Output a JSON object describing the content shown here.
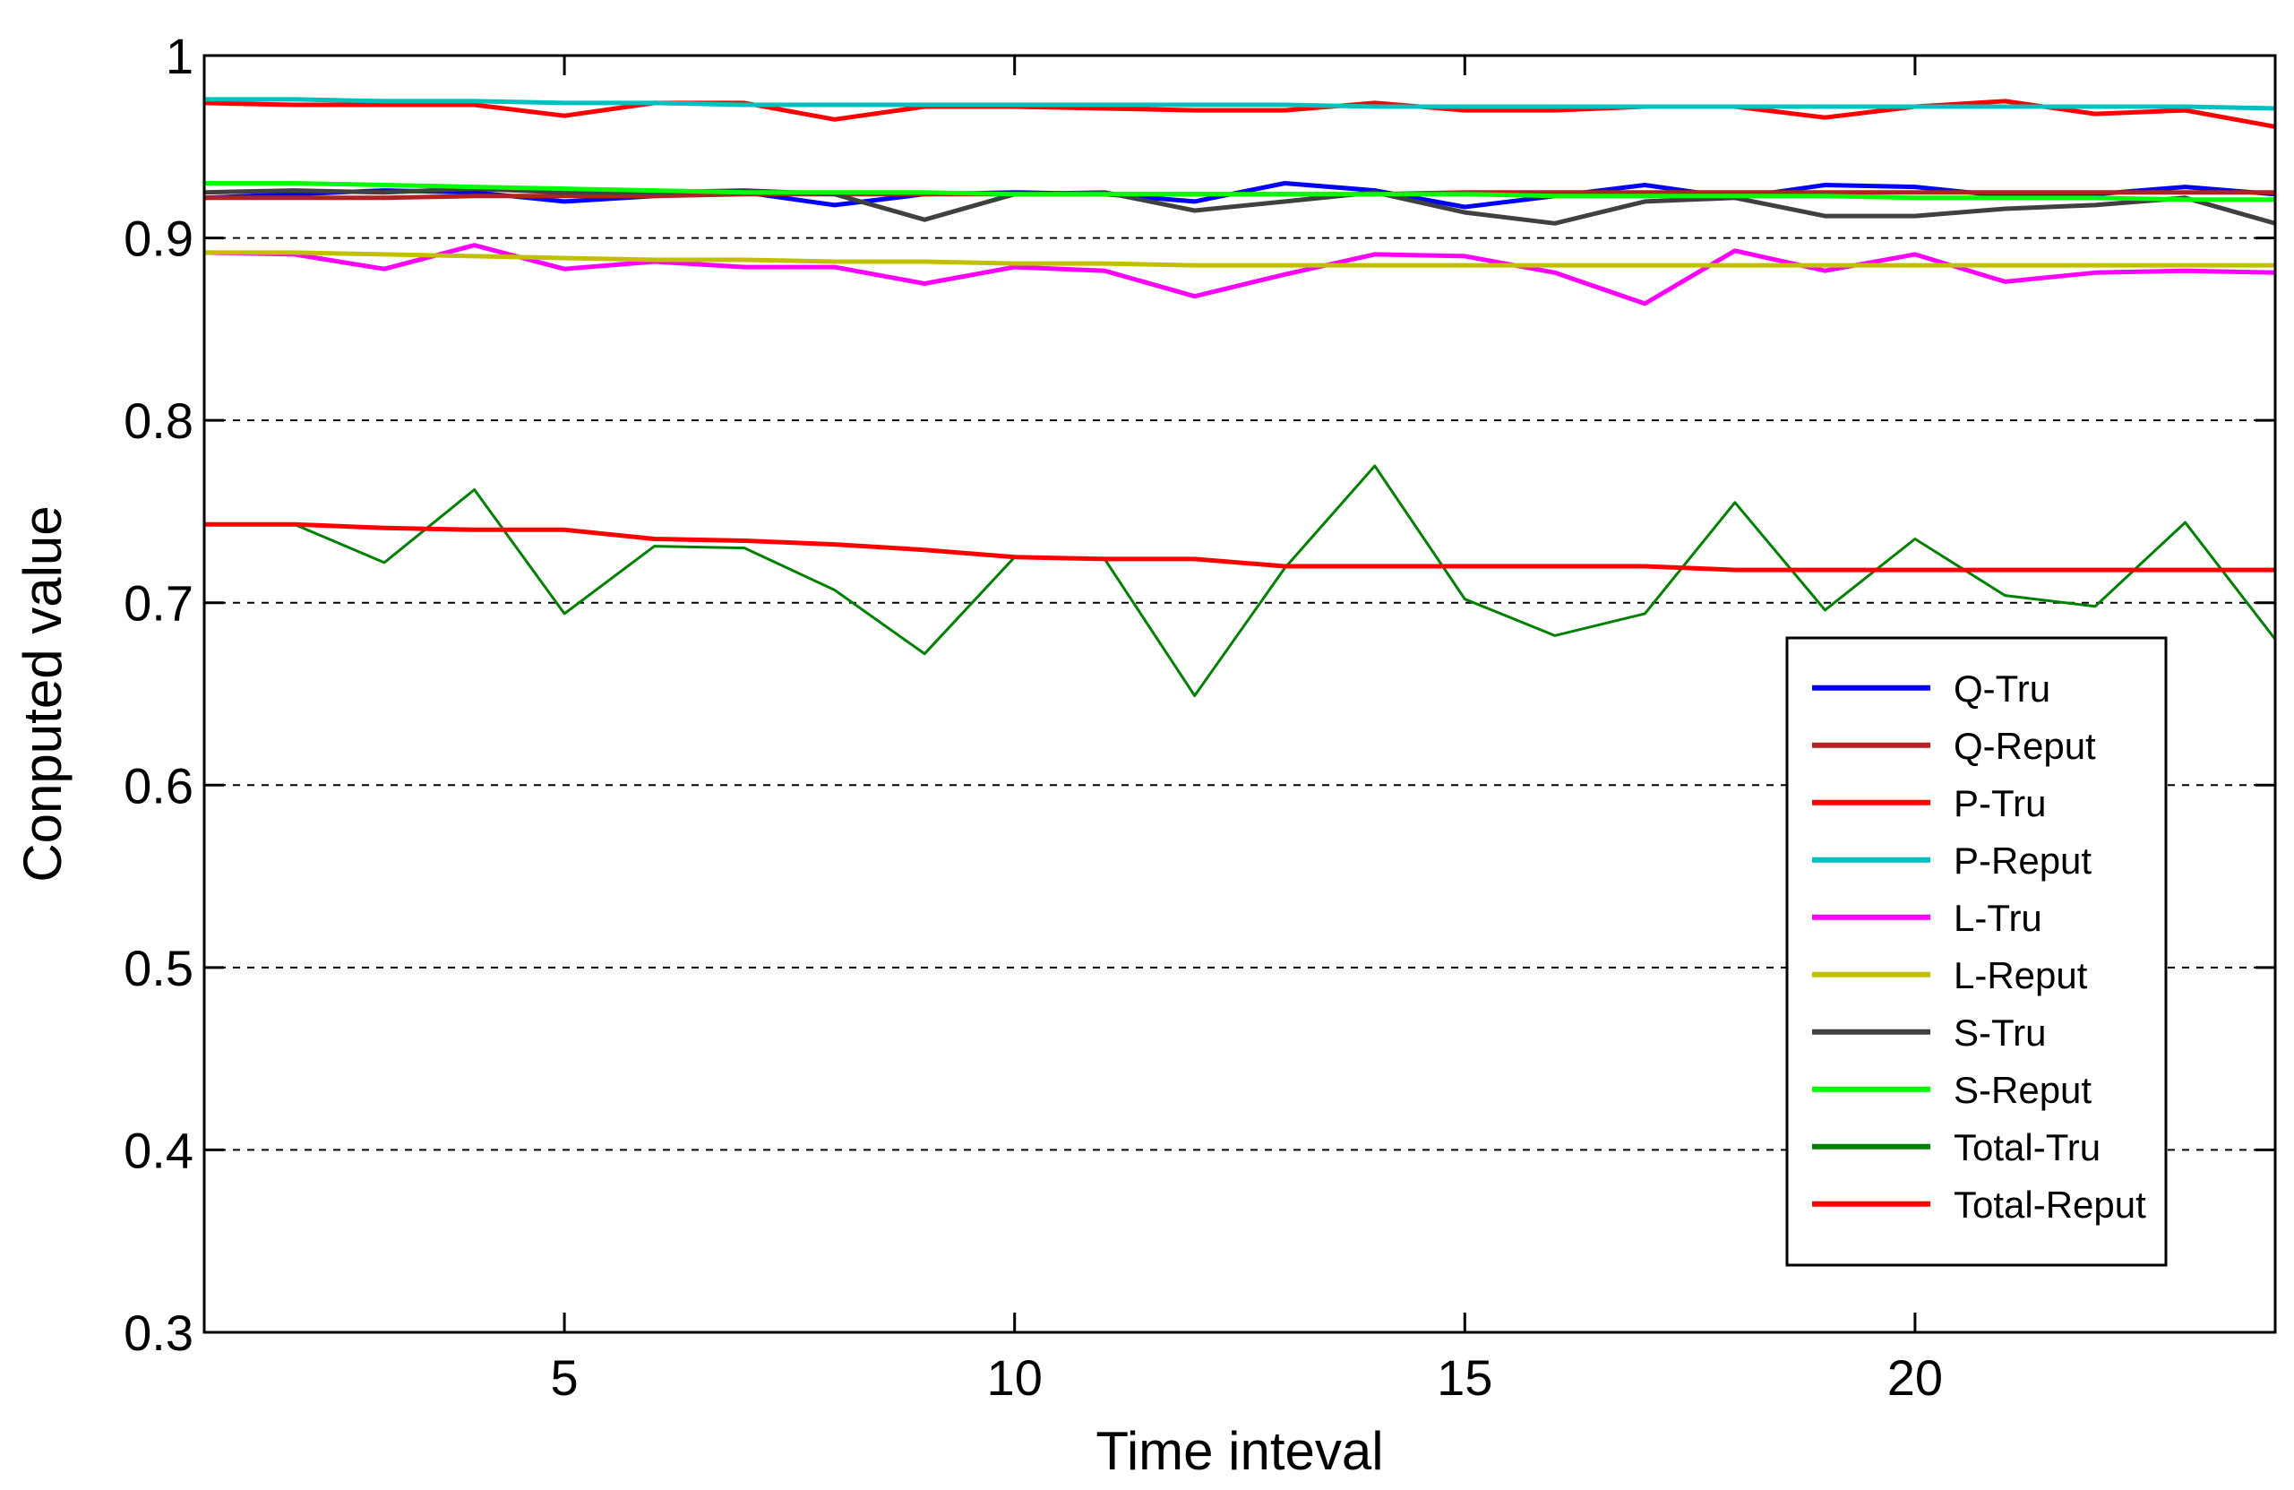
{
  "chart_data": {
    "type": "line",
    "title": "",
    "xlabel": "Time inteval",
    "ylabel": "Conputed value",
    "xlim": [
      1,
      24
    ],
    "ylim": [
      0.3,
      1.0
    ],
    "xticks": [
      5,
      10,
      15,
      20
    ],
    "xtick_labels": [
      "5",
      "10",
      "15",
      "20"
    ],
    "yticks": [
      0.3,
      0.4,
      0.5,
      0.6,
      0.7,
      0.8,
      0.9,
      1.0
    ],
    "ytick_labels": [
      "0.3",
      "0.4",
      "0.5",
      "0.6",
      "0.7",
      "0.8",
      "0.9",
      "1"
    ],
    "grid": "horizontal dashed",
    "legend_position": "lower-right",
    "x": [
      1,
      2,
      3,
      4,
      5,
      6,
      7,
      8,
      9,
      10,
      11,
      12,
      13,
      14,
      15,
      16,
      17,
      18,
      19,
      20,
      21,
      22,
      23,
      24
    ],
    "series": [
      {
        "name": "Q-Tru",
        "color": "#0000ff",
        "values": [
          0.922,
          0.924,
          0.926,
          0.925,
          0.92,
          0.923,
          0.925,
          0.918,
          0.924,
          0.925,
          0.924,
          0.92,
          0.93,
          0.926,
          0.917,
          0.923,
          0.929,
          0.922,
          0.929,
          0.928,
          0.923,
          0.924,
          0.928,
          0.924
        ]
      },
      {
        "name": "Q-Reput",
        "color": "#b22222",
        "values": [
          0.922,
          0.922,
          0.922,
          0.923,
          0.923,
          0.923,
          0.924,
          0.924,
          0.924,
          0.924,
          0.924,
          0.924,
          0.924,
          0.924,
          0.925,
          0.925,
          0.925,
          0.925,
          0.925,
          0.925,
          0.925,
          0.925,
          0.925,
          0.925
        ]
      },
      {
        "name": "P-Tru",
        "color": "#ff0000",
        "values": [
          0.974,
          0.973,
          0.973,
          0.973,
          0.967,
          0.974,
          0.974,
          0.965,
          0.972,
          0.972,
          0.971,
          0.97,
          0.97,
          0.974,
          0.97,
          0.97,
          0.972,
          0.972,
          0.966,
          0.972,
          0.975,
          0.968,
          0.97,
          0.961
        ]
      },
      {
        "name": "P-Reput",
        "color": "#00c0c0",
        "values": [
          0.976,
          0.976,
          0.975,
          0.975,
          0.974,
          0.974,
          0.973,
          0.973,
          0.973,
          0.973,
          0.973,
          0.973,
          0.973,
          0.972,
          0.972,
          0.972,
          0.972,
          0.972,
          0.972,
          0.972,
          0.972,
          0.972,
          0.972,
          0.971
        ]
      },
      {
        "name": "L-Tru",
        "color": "#ff00ff",
        "values": [
          0.892,
          0.891,
          0.883,
          0.896,
          0.883,
          0.887,
          0.884,
          0.884,
          0.875,
          0.884,
          0.882,
          0.868,
          0.88,
          0.891,
          0.89,
          0.881,
          0.864,
          0.893,
          0.882,
          0.891,
          0.876,
          0.881,
          0.882,
          0.881
        ]
      },
      {
        "name": "L-Reput",
        "color": "#c0c000",
        "values": [
          0.892,
          0.892,
          0.891,
          0.89,
          0.889,
          0.888,
          0.888,
          0.887,
          0.887,
          0.886,
          0.886,
          0.885,
          0.885,
          0.885,
          0.885,
          0.885,
          0.885,
          0.885,
          0.885,
          0.885,
          0.885,
          0.885,
          0.885,
          0.885
        ]
      },
      {
        "name": "S-Tru",
        "color": "#404040",
        "values": [
          0.925,
          0.926,
          0.925,
          0.927,
          0.925,
          0.925,
          0.926,
          0.924,
          0.91,
          0.924,
          0.925,
          0.915,
          0.92,
          0.925,
          0.914,
          0.908,
          0.92,
          0.922,
          0.912,
          0.912,
          0.916,
          0.918,
          0.922,
          0.908
        ]
      },
      {
        "name": "S-Reput",
        "color": "#00ff00",
        "values": [
          0.93,
          0.93,
          0.929,
          0.928,
          0.927,
          0.926,
          0.925,
          0.925,
          0.925,
          0.924,
          0.924,
          0.924,
          0.924,
          0.924,
          0.924,
          0.923,
          0.923,
          0.923,
          0.923,
          0.922,
          0.922,
          0.922,
          0.921,
          0.921
        ]
      },
      {
        "name": "Total-Tru",
        "color": "#008000",
        "values": [
          0.743,
          0.743,
          0.722,
          0.762,
          0.694,
          0.731,
          0.73,
          0.707,
          0.672,
          0.725,
          0.724,
          0.649,
          0.719,
          0.775,
          0.702,
          0.682,
          0.694,
          0.755,
          0.696,
          0.735,
          0.704,
          0.698,
          0.744,
          0.68
        ]
      },
      {
        "name": "Total-Reput",
        "color": "#ff0000",
        "values": [
          0.743,
          0.743,
          0.741,
          0.74,
          0.74,
          0.735,
          0.734,
          0.732,
          0.729,
          0.725,
          0.724,
          0.724,
          0.72,
          0.72,
          0.72,
          0.72,
          0.72,
          0.718,
          0.718,
          0.718,
          0.718,
          0.718,
          0.718,
          0.718
        ]
      }
    ]
  }
}
